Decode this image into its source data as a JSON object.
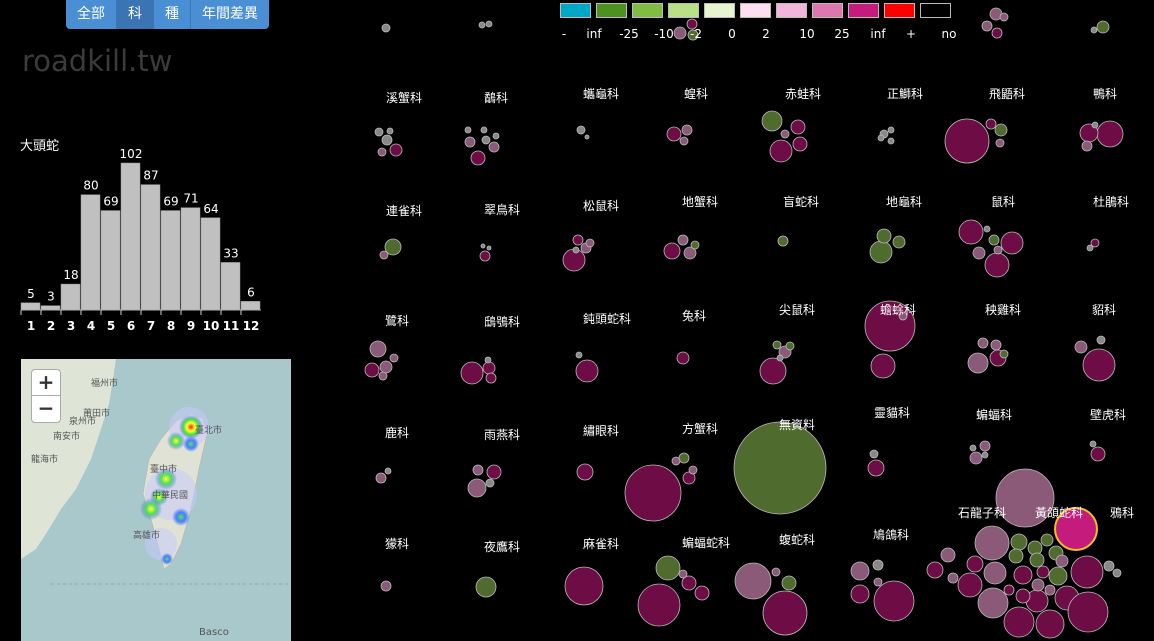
{
  "tabs": [
    "全部",
    "科",
    "種",
    "年間差異"
  ],
  "active_tab": 1,
  "site_title": "roadkill.tw",
  "species_name": "大頭蛇",
  "chart_data": {
    "type": "bar",
    "categories": [
      "1",
      "2",
      "3",
      "4",
      "5",
      "6",
      "7",
      "8",
      "9",
      "10",
      "11",
      "12"
    ],
    "values": [
      5,
      3,
      18,
      80,
      69,
      102,
      87,
      69,
      71,
      64,
      33,
      6
    ],
    "title": "大頭蛇",
    "xlabel": "",
    "ylabel": "",
    "data_labels": true,
    "bar_color": "#c0c0c0"
  },
  "map": {
    "zoom_in": "+",
    "zoom_out": "−",
    "labels": [
      "福州市",
      "莆田市",
      "泉州市",
      "南安市",
      "龍海市",
      "臺北市",
      "臺中市",
      "中華民國",
      "高雄市",
      "Basco"
    ]
  },
  "legend": {
    "colors": [
      "#00a8c8",
      "#4d9221",
      "#7fbc41",
      "#b8e186",
      "#e6f5d0",
      "#fde0ef",
      "#f1b6da",
      "#de77ae",
      "#c51b7d",
      "#ff0000",
      "#000000"
    ],
    "labels": [
      "-",
      "inf",
      "-25",
      "-10",
      "-2",
      "0",
      "2",
      "10",
      "25",
      "inf",
      "+",
      "no"
    ]
  },
  "families": [
    "溪蟹科",
    "鷸科",
    "蠵龜科",
    "蝗科",
    "赤蛙科",
    "正鰤科",
    "飛鼯科",
    "鴨科",
    "連雀科",
    "翠鳥科",
    "松鼠科",
    "地蟹科",
    "盲蛇科",
    "地龜科",
    "鼠科",
    "杜鵑科",
    "鷺科",
    "鴟鴞科",
    "鈍頭蛇科",
    "兔科",
    "尖鼠科",
    "蟾蜍科",
    "秧雞科",
    "貂科",
    "鹿科",
    "雨燕科",
    "繡眼科",
    "方蟹科",
    "無資料",
    "靈貓科",
    "蝙蝠科",
    "壁虎科",
    "獴科",
    "夜鷹科",
    "麻雀科",
    "蝙蝠蛇科",
    "蝮蛇科",
    "鳩鴿科",
    "石龍子科",
    "黃頜蛇科",
    "鴉科"
  ],
  "bubble_colors": {
    "magenta": "#6e0d45",
    "pink": "#8a5a78",
    "green": "#4f6b2e",
    "grey": "#888888",
    "highlight": "#c51b7d",
    "highlight_stroke": "#f0c020"
  }
}
